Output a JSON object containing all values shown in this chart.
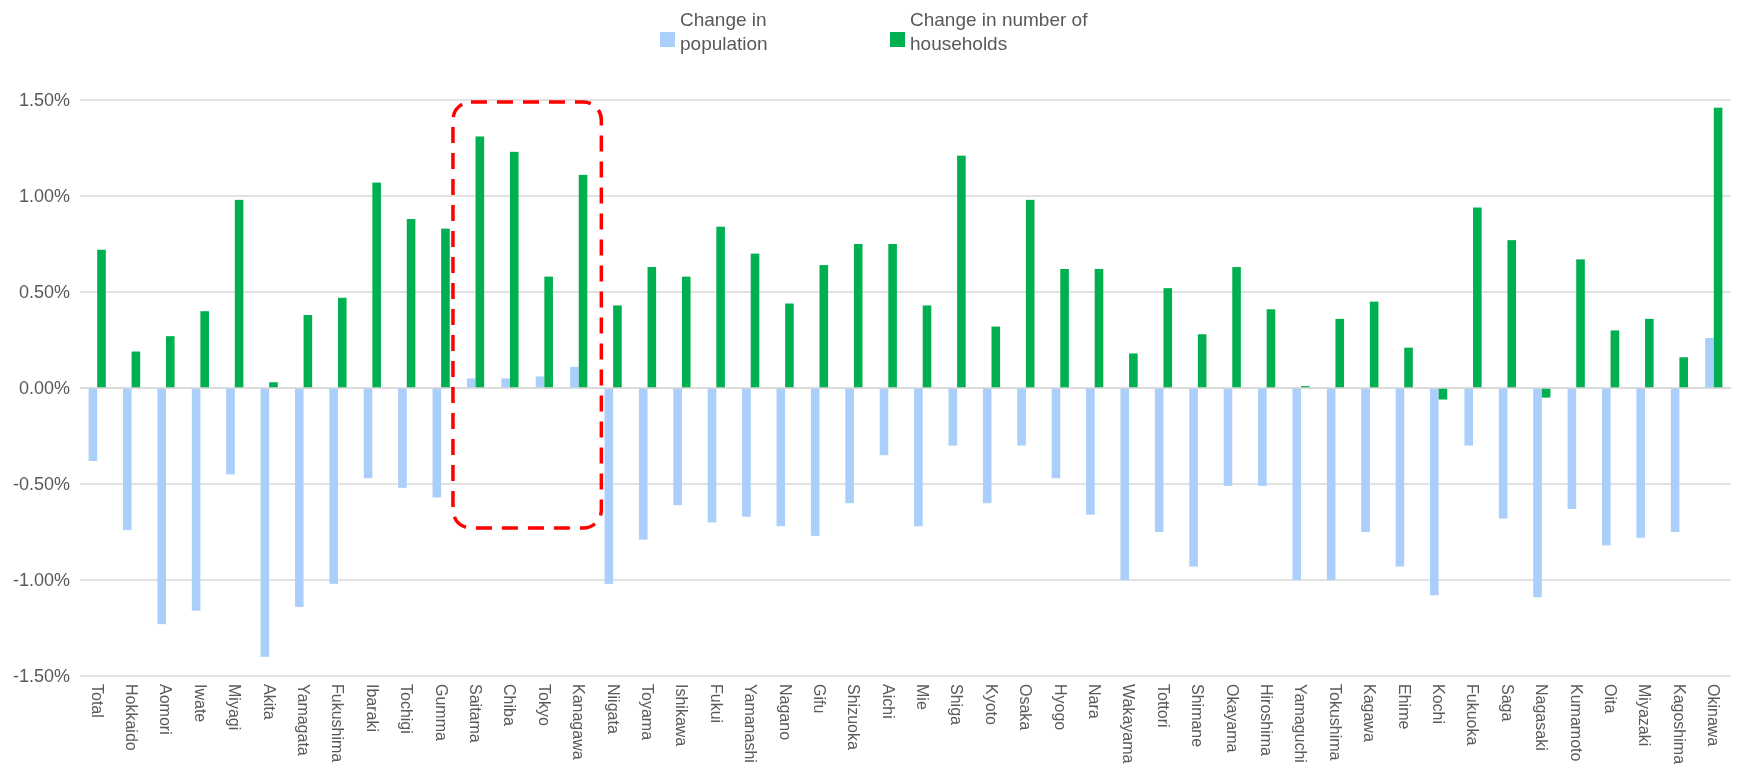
{
  "chart_data": {
    "type": "bar",
    "categories": [
      "Total",
      "Hokkaido",
      "Aomori",
      "Iwate",
      "Miyagi",
      "Akita",
      "Yamagata",
      "Fukushima",
      "Ibaraki",
      "Tochigi",
      "Gumma",
      "Saitama",
      "Chiba",
      "Tokyo",
      "Kanagawa",
      "Niigata",
      "Toyama",
      "Ishikawa",
      "Fukui",
      "Yamanashi",
      "Nagano",
      "Gifu",
      "Shizuoka",
      "Aichi",
      "Mie",
      "Shiga",
      "Kyoto",
      "Osaka",
      "Hyogo",
      "Nara",
      "Wakayama",
      "Tottori",
      "Shimane",
      "Okayama",
      "Hiroshima",
      "Yamaguchi",
      "Tokushima",
      "Kagawa",
      "Ehime",
      "Kochi",
      "Fukuoka",
      "Saga",
      "Nagasaki",
      "Kumamoto",
      "Oita",
      "Miyazaki",
      "Kagoshima",
      "Okinawa"
    ],
    "series": [
      {
        "name": "Change in population",
        "color": "#abcffb",
        "values": [
          -0.38,
          -0.74,
          -1.23,
          -1.16,
          -0.45,
          -1.4,
          -1.14,
          -1.02,
          -0.47,
          -0.52,
          -0.57,
          0.05,
          0.05,
          0.06,
          0.11,
          -1.02,
          -0.79,
          -0.61,
          -0.7,
          -0.67,
          -0.72,
          -0.77,
          -0.6,
          -0.35,
          -0.72,
          -0.3,
          -0.6,
          -0.3,
          -0.47,
          -0.66,
          -1.0,
          -0.75,
          -0.93,
          -0.51,
          -0.51,
          -1.0,
          -1.0,
          -0.75,
          -0.93,
          -1.08,
          -0.3,
          -0.68,
          -1.09,
          -0.63,
          -0.82,
          -0.78,
          -0.75,
          0.26
        ]
      },
      {
        "name": "Change in number of households",
        "color": "#00b050",
        "values": [
          0.72,
          0.19,
          0.27,
          0.4,
          0.98,
          0.03,
          0.38,
          0.47,
          1.07,
          0.88,
          0.83,
          1.31,
          1.23,
          0.58,
          1.11,
          0.43,
          0.63,
          0.58,
          0.84,
          0.7,
          0.44,
          0.64,
          0.75,
          0.75,
          0.43,
          1.21,
          0.32,
          0.98,
          0.62,
          0.62,
          0.18,
          0.52,
          0.28,
          0.63,
          0.41,
          0.01,
          0.36,
          0.45,
          0.21,
          -0.06,
          0.94,
          0.77,
          -0.05,
          0.67,
          0.3,
          0.36,
          0.16,
          1.46
        ]
      }
    ],
    "ylim": [
      -1.5,
      1.5
    ],
    "yticks": [
      {
        "value": -1.5,
        "label": "-1.50%"
      },
      {
        "value": -1,
        "label": "-1.00%"
      },
      {
        "value": -0.5,
        "label": "-0.50%"
      },
      {
        "value": 0,
        "label": "0.00%"
      },
      {
        "value": 0.5,
        "label": "0.50%"
      },
      {
        "value": 1,
        "label": "1.00%"
      },
      {
        "value": 1.5,
        "label": "1.50%"
      }
    ],
    "grid": "y",
    "legend": "top"
  }
}
